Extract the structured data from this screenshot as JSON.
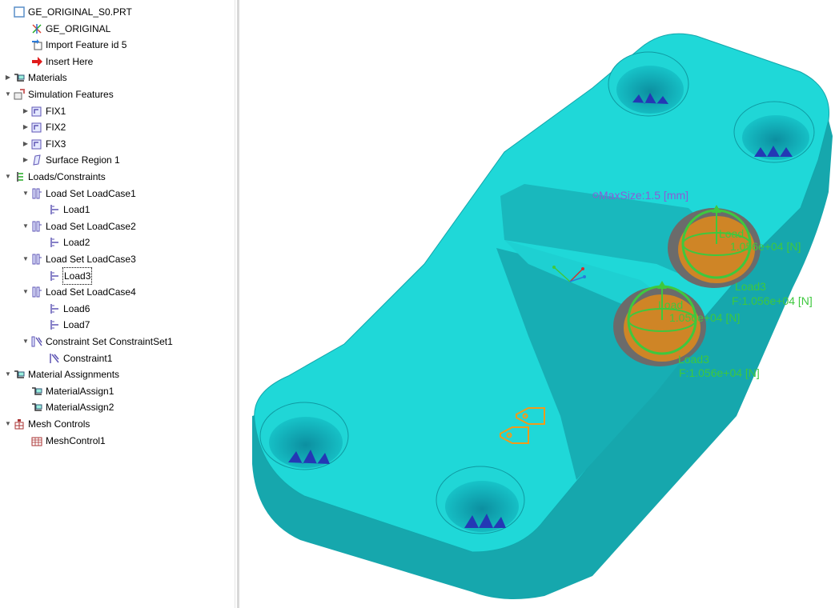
{
  "tree": {
    "items": [
      {
        "label": "GE_ORIGINAL_S0.PRT",
        "icon": "part-icon",
        "indent": 0,
        "exp": ""
      },
      {
        "label": "GE_ORIGINAL",
        "icon": "csys-icon",
        "indent": 1,
        "exp": ""
      },
      {
        "label": "Import Feature id 5",
        "icon": "import-feature-icon",
        "indent": 1,
        "exp": ""
      },
      {
        "label": "Insert Here",
        "icon": "insert-here-arrow-icon",
        "indent": 1,
        "exp": ""
      },
      {
        "label": "Materials",
        "icon": "materials-icon",
        "indent": 0,
        "exp": "collapsed"
      },
      {
        "label": "Simulation Features",
        "icon": "simulation-features-icon",
        "indent": 0,
        "exp": "expanded"
      },
      {
        "label": "FIX1",
        "icon": "simulation-feature-icon",
        "indent": 1,
        "exp": "collapsed"
      },
      {
        "label": "FIX2",
        "icon": "simulation-feature-icon",
        "indent": 1,
        "exp": "collapsed"
      },
      {
        "label": "FIX3",
        "icon": "simulation-feature-icon",
        "indent": 1,
        "exp": "collapsed"
      },
      {
        "label": "Surface Region 1",
        "icon": "surface-region-icon",
        "indent": 1,
        "exp": "collapsed"
      },
      {
        "label": "Loads/Constraints",
        "icon": "loads-constraints-icon",
        "indent": 0,
        "exp": "expanded"
      },
      {
        "label": "Load Set LoadCase1",
        "icon": "load-set-icon",
        "indent": 1,
        "exp": "expanded"
      },
      {
        "label": "Load1",
        "icon": "load-icon",
        "indent": 2,
        "exp": ""
      },
      {
        "label": "Load Set LoadCase2",
        "icon": "load-set-icon",
        "indent": 1,
        "exp": "expanded"
      },
      {
        "label": "Load2",
        "icon": "load-icon",
        "indent": 2,
        "exp": ""
      },
      {
        "label": "Load Set LoadCase3",
        "icon": "load-set-icon",
        "indent": 1,
        "exp": "expanded"
      },
      {
        "label": "Load3",
        "icon": "load-icon",
        "indent": 2,
        "exp": "",
        "selected": true
      },
      {
        "label": "Load Set LoadCase4",
        "icon": "load-set-icon",
        "indent": 1,
        "exp": "expanded"
      },
      {
        "label": "Load6",
        "icon": "load-icon",
        "indent": 2,
        "exp": ""
      },
      {
        "label": "Load7",
        "icon": "load-icon",
        "indent": 2,
        "exp": ""
      },
      {
        "label": "Constraint Set ConstraintSet1",
        "icon": "constraint-set-icon",
        "indent": 1,
        "exp": "expanded"
      },
      {
        "label": "Constraint1",
        "icon": "constraint-icon",
        "indent": 2,
        "exp": ""
      },
      {
        "label": "Material Assignments",
        "icon": "material-assignments-icon",
        "indent": 0,
        "exp": "expanded"
      },
      {
        "label": "MaterialAssign1",
        "icon": "material-assign-icon",
        "indent": 1,
        "exp": ""
      },
      {
        "label": "MaterialAssign2",
        "icon": "material-assign-icon",
        "indent": 1,
        "exp": ""
      },
      {
        "label": "Mesh Controls",
        "icon": "mesh-controls-icon",
        "indent": 0,
        "exp": "expanded"
      },
      {
        "label": "MeshControl1",
        "icon": "mesh-control-icon",
        "indent": 1,
        "exp": ""
      }
    ]
  },
  "viewport": {
    "model_color": "#1fd3d3",
    "model_shadow_color": "#16a3a8",
    "load_color": "#3ec83e",
    "annotation_color": "#8a5cd6",
    "material_tag_color": "#f29a1a",
    "max_size_label": "MaxSize:1.5 [mm]",
    "load_upper_name": "Load3",
    "load_upper_force": "F:1.056e+04 [N]",
    "load_upper_back_name": "Load",
    "load_upper_back_force": "1.056e+04 [N]",
    "load_lower_name": "Load3",
    "load_lower_force": "F:1.056e+04 [N]",
    "load_lower_back_name": "Load",
    "load_lower_back_force": "1.056e+04 [N]"
  }
}
